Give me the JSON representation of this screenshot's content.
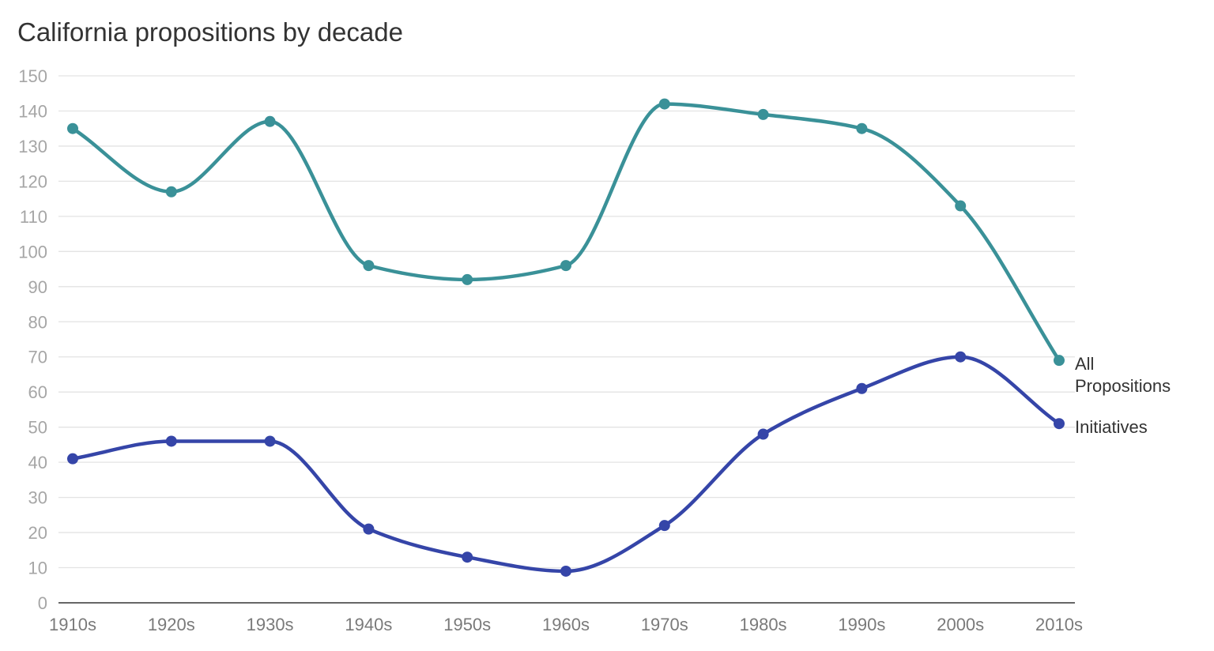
{
  "chart_data": {
    "type": "line",
    "title": "California propositions by decade",
    "xlabel": "",
    "ylabel": "",
    "categories": [
      "1910s",
      "1920s",
      "1930s",
      "1940s",
      "1950s",
      "1960s",
      "1970s",
      "1980s",
      "1990s",
      "2000s",
      "2010s"
    ],
    "ylim": [
      0,
      150
    ],
    "yticks": [
      0,
      10,
      20,
      30,
      40,
      50,
      60,
      70,
      80,
      90,
      100,
      110,
      120,
      130,
      140,
      150
    ],
    "grid": true,
    "legend": "end-of-line labels",
    "series": [
      {
        "name": "All Propositions",
        "label_lines": [
          "All",
          "Propositions"
        ],
        "color": "#3a9198",
        "values": [
          135,
          117,
          137,
          96,
          92,
          96,
          142,
          139,
          135,
          113,
          69
        ]
      },
      {
        "name": "Initiatives",
        "label_lines": [
          "Initiatives"
        ],
        "color": "#3545a8",
        "values": [
          41,
          46,
          46,
          21,
          13,
          9,
          22,
          48,
          61,
          70,
          51
        ]
      }
    ]
  }
}
